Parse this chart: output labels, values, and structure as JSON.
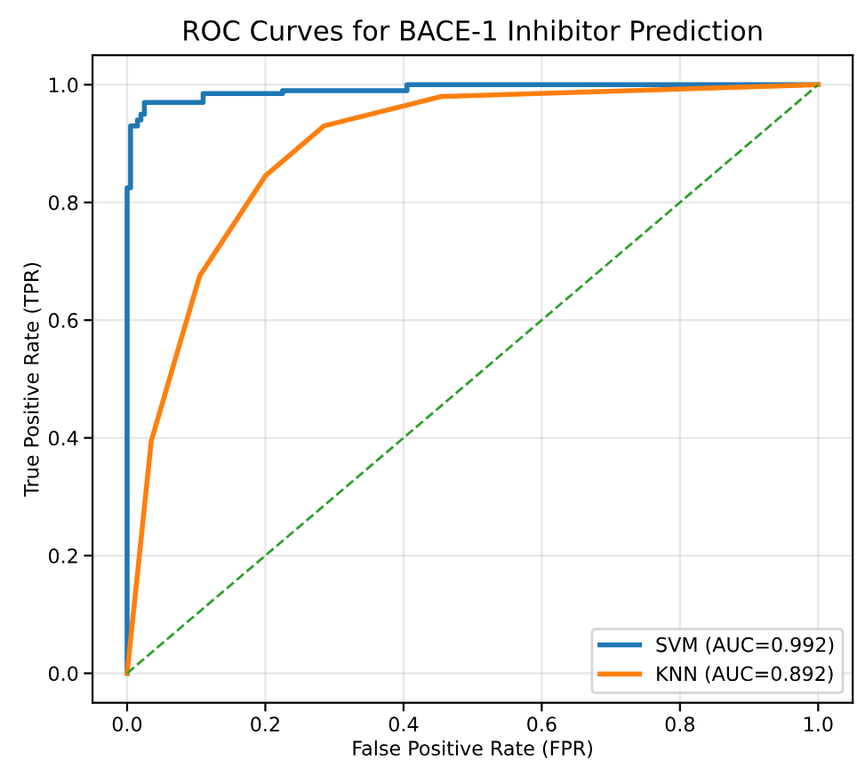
{
  "chart_data": {
    "type": "line",
    "title": "ROC Curves for BACE-1 Inhibitor Prediction",
    "xlabel": "False Positive Rate (FPR)",
    "ylabel": "True Positive Rate (TPR)",
    "series": [
      {
        "name": "SVM (AUC=0.992)",
        "type": "step",
        "color": "#1f77b4",
        "x": [
          0,
          0,
          0.005,
          0.015,
          0.02,
          0.025,
          0.11,
          0.225,
          0.405,
          1.0
        ],
        "values": [
          0,
          0.825,
          0.93,
          0.94,
          0.95,
          0.97,
          0.985,
          0.99,
          1.0,
          1.0
        ]
      },
      {
        "name": "KNN (AUC=0.892)",
        "color": "#ff7f0e",
        "x": [
          0,
          0.035,
          0.105,
          0.2,
          0.285,
          0.455,
          1.0
        ],
        "values": [
          0,
          0.395,
          0.675,
          0.845,
          0.93,
          0.98,
          1.0
        ]
      },
      {
        "color": "#2ca02c",
        "line_style": "dashed",
        "x": [
          0,
          1
        ],
        "values": [
          0,
          1
        ]
      }
    ],
    "xlim": [
      -0.05,
      1.05
    ],
    "ylim": [
      -0.05,
      1.05
    ],
    "xticks": [
      {
        "value": 0,
        "label": "0.0"
      },
      0.2,
      0.4,
      0.6,
      0.8,
      {
        "value": 1,
        "label": "1.0"
      }
    ],
    "yticks": [
      {
        "value": 0,
        "label": "0.0"
      },
      0.2,
      0.4,
      0.6,
      0.8,
      {
        "value": 1,
        "label": "1.0"
      }
    ],
    "grid": true,
    "legend": "lower right"
  }
}
